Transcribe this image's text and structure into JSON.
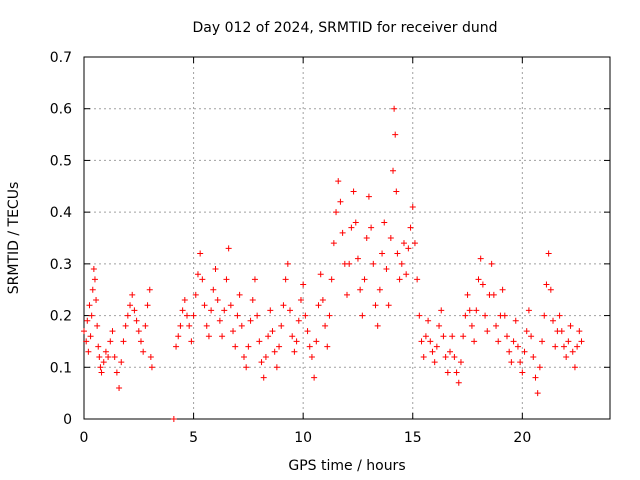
{
  "chart_data": {
    "type": "scatter",
    "title": "Day 012 of 2024, SRMTID for receiver dund",
    "xlabel": "GPS time / hours",
    "ylabel": "SRMTID / TECUs",
    "xlim": [
      0,
      24
    ],
    "ylim": [
      0,
      0.7
    ],
    "xticks": [
      0,
      5,
      10,
      15,
      20
    ],
    "yticks": [
      0,
      0.1,
      0.2,
      0.3,
      0.4,
      0.5,
      0.6,
      0.7
    ],
    "xtick_labels": [
      "0",
      "5",
      "10",
      "15",
      "20"
    ],
    "ytick_labels": [
      "0",
      "0.1",
      "0.2",
      "0.3",
      "0.4",
      "0.5",
      "0.6",
      "0.7"
    ],
    "grid": true,
    "marker": "plus",
    "color": "#ff0000",
    "series": [
      {
        "name": "SRMTID",
        "points": [
          [
            0.0,
            0.17
          ],
          [
            0.1,
            0.15
          ],
          [
            0.15,
            0.19
          ],
          [
            0.2,
            0.13
          ],
          [
            0.25,
            0.22
          ],
          [
            0.3,
            0.16
          ],
          [
            0.35,
            0.2
          ],
          [
            0.4,
            0.25
          ],
          [
            0.45,
            0.29
          ],
          [
            0.5,
            0.27
          ],
          [
            0.55,
            0.23
          ],
          [
            0.6,
            0.18
          ],
          [
            0.65,
            0.14
          ],
          [
            0.7,
            0.12
          ],
          [
            0.75,
            0.1
          ],
          [
            0.8,
            0.09
          ],
          [
            0.9,
            0.11
          ],
          [
            1.0,
            0.13
          ],
          [
            1.1,
            0.12
          ],
          [
            1.2,
            0.15
          ],
          [
            1.3,
            0.17
          ],
          [
            1.4,
            0.12
          ],
          [
            1.5,
            0.09
          ],
          [
            1.6,
            0.06
          ],
          [
            1.7,
            0.11
          ],
          [
            1.8,
            0.15
          ],
          [
            1.9,
            0.18
          ],
          [
            2.0,
            0.2
          ],
          [
            2.1,
            0.22
          ],
          [
            2.2,
            0.24
          ],
          [
            2.3,
            0.21
          ],
          [
            2.4,
            0.19
          ],
          [
            2.5,
            0.17
          ],
          [
            2.6,
            0.15
          ],
          [
            2.7,
            0.13
          ],
          [
            2.8,
            0.18
          ],
          [
            2.9,
            0.22
          ],
          [
            3.0,
            0.25
          ],
          [
            3.05,
            0.12
          ],
          [
            3.1,
            0.1
          ],
          [
            4.1,
            0.0
          ],
          [
            4.2,
            0.14
          ],
          [
            4.3,
            0.16
          ],
          [
            4.4,
            0.18
          ],
          [
            4.5,
            0.21
          ],
          [
            4.6,
            0.23
          ],
          [
            4.7,
            0.2
          ],
          [
            4.8,
            0.18
          ],
          [
            4.9,
            0.15
          ],
          [
            5.0,
            0.2
          ],
          [
            5.1,
            0.24
          ],
          [
            5.2,
            0.28
          ],
          [
            5.3,
            0.32
          ],
          [
            5.4,
            0.27
          ],
          [
            5.5,
            0.22
          ],
          [
            5.6,
            0.18
          ],
          [
            5.7,
            0.16
          ],
          [
            5.8,
            0.21
          ],
          [
            5.9,
            0.25
          ],
          [
            6.0,
            0.29
          ],
          [
            6.1,
            0.23
          ],
          [
            6.2,
            0.19
          ],
          [
            6.3,
            0.16
          ],
          [
            6.4,
            0.21
          ],
          [
            6.5,
            0.27
          ],
          [
            6.6,
            0.33
          ],
          [
            6.7,
            0.22
          ],
          [
            6.8,
            0.17
          ],
          [
            6.9,
            0.14
          ],
          [
            7.0,
            0.2
          ],
          [
            7.1,
            0.24
          ],
          [
            7.2,
            0.18
          ],
          [
            7.3,
            0.12
          ],
          [
            7.4,
            0.1
          ],
          [
            7.5,
            0.14
          ],
          [
            7.6,
            0.19
          ],
          [
            7.7,
            0.23
          ],
          [
            7.8,
            0.27
          ],
          [
            7.9,
            0.2
          ],
          [
            8.0,
            0.15
          ],
          [
            8.1,
            0.11
          ],
          [
            8.2,
            0.08
          ],
          [
            8.3,
            0.12
          ],
          [
            8.4,
            0.16
          ],
          [
            8.5,
            0.21
          ],
          [
            8.6,
            0.17
          ],
          [
            8.7,
            0.13
          ],
          [
            8.8,
            0.1
          ],
          [
            8.9,
            0.14
          ],
          [
            9.0,
            0.18
          ],
          [
            9.1,
            0.22
          ],
          [
            9.2,
            0.27
          ],
          [
            9.3,
            0.3
          ],
          [
            9.4,
            0.21
          ],
          [
            9.5,
            0.16
          ],
          [
            9.6,
            0.13
          ],
          [
            9.7,
            0.15
          ],
          [
            9.8,
            0.19
          ],
          [
            9.9,
            0.23
          ],
          [
            10.0,
            0.26
          ],
          [
            10.1,
            0.2
          ],
          [
            10.2,
            0.17
          ],
          [
            10.3,
            0.14
          ],
          [
            10.4,
            0.12
          ],
          [
            10.5,
            0.08
          ],
          [
            10.6,
            0.15
          ],
          [
            10.7,
            0.22
          ],
          [
            10.8,
            0.28
          ],
          [
            10.9,
            0.23
          ],
          [
            11.0,
            0.18
          ],
          [
            11.1,
            0.14
          ],
          [
            11.2,
            0.2
          ],
          [
            11.3,
            0.27
          ],
          [
            11.4,
            0.34
          ],
          [
            11.5,
            0.4
          ],
          [
            11.6,
            0.46
          ],
          [
            11.7,
            0.42
          ],
          [
            11.8,
            0.36
          ],
          [
            11.9,
            0.3
          ],
          [
            12.0,
            0.24
          ],
          [
            12.1,
            0.3
          ],
          [
            12.2,
            0.37
          ],
          [
            12.3,
            0.44
          ],
          [
            12.4,
            0.38
          ],
          [
            12.5,
            0.31
          ],
          [
            12.6,
            0.25
          ],
          [
            12.7,
            0.2
          ],
          [
            12.8,
            0.27
          ],
          [
            12.9,
            0.35
          ],
          [
            13.0,
            0.43
          ],
          [
            13.1,
            0.37
          ],
          [
            13.2,
            0.3
          ],
          [
            13.3,
            0.22
          ],
          [
            13.4,
            0.18
          ],
          [
            13.5,
            0.25
          ],
          [
            13.6,
            0.32
          ],
          [
            13.7,
            0.38
          ],
          [
            13.8,
            0.29
          ],
          [
            13.9,
            0.22
          ],
          [
            14.0,
            0.35
          ],
          [
            14.1,
            0.48
          ],
          [
            14.15,
            0.6
          ],
          [
            14.2,
            0.55
          ],
          [
            14.25,
            0.44
          ],
          [
            14.3,
            0.32
          ],
          [
            14.4,
            0.27
          ],
          [
            14.5,
            0.3
          ],
          [
            14.6,
            0.34
          ],
          [
            14.7,
            0.28
          ],
          [
            14.8,
            0.33
          ],
          [
            14.9,
            0.37
          ],
          [
            15.0,
            0.41
          ],
          [
            15.1,
            0.34
          ],
          [
            15.2,
            0.27
          ],
          [
            15.3,
            0.2
          ],
          [
            15.4,
            0.15
          ],
          [
            15.5,
            0.12
          ],
          [
            15.6,
            0.16
          ],
          [
            15.7,
            0.19
          ],
          [
            15.8,
            0.15
          ],
          [
            15.9,
            0.13
          ],
          [
            16.0,
            0.11
          ],
          [
            16.1,
            0.14
          ],
          [
            16.2,
            0.18
          ],
          [
            16.3,
            0.21
          ],
          [
            16.4,
            0.16
          ],
          [
            16.5,
            0.12
          ],
          [
            16.6,
            0.09
          ],
          [
            16.7,
            0.13
          ],
          [
            16.8,
            0.16
          ],
          [
            16.9,
            0.12
          ],
          [
            17.0,
            0.09
          ],
          [
            17.1,
            0.07
          ],
          [
            17.2,
            0.11
          ],
          [
            17.3,
            0.16
          ],
          [
            17.4,
            0.2
          ],
          [
            17.5,
            0.24
          ],
          [
            17.6,
            0.21
          ],
          [
            17.7,
            0.18
          ],
          [
            17.8,
            0.15
          ],
          [
            17.9,
            0.21
          ],
          [
            18.0,
            0.27
          ],
          [
            18.1,
            0.31
          ],
          [
            18.2,
            0.26
          ],
          [
            18.3,
            0.2
          ],
          [
            18.4,
            0.17
          ],
          [
            18.5,
            0.24
          ],
          [
            18.6,
            0.3
          ],
          [
            18.7,
            0.24
          ],
          [
            18.8,
            0.18
          ],
          [
            18.9,
            0.15
          ],
          [
            19.0,
            0.2
          ],
          [
            19.1,
            0.25
          ],
          [
            19.2,
            0.2
          ],
          [
            19.3,
            0.16
          ],
          [
            19.4,
            0.13
          ],
          [
            19.5,
            0.11
          ],
          [
            19.6,
            0.15
          ],
          [
            19.7,
            0.19
          ],
          [
            19.8,
            0.14
          ],
          [
            19.9,
            0.11
          ],
          [
            20.0,
            0.09
          ],
          [
            20.1,
            0.13
          ],
          [
            20.2,
            0.17
          ],
          [
            20.3,
            0.21
          ],
          [
            20.4,
            0.16
          ],
          [
            20.5,
            0.12
          ],
          [
            20.6,
            0.08
          ],
          [
            20.7,
            0.05
          ],
          [
            20.8,
            0.1
          ],
          [
            20.9,
            0.15
          ],
          [
            21.0,
            0.2
          ],
          [
            21.1,
            0.26
          ],
          [
            21.2,
            0.32
          ],
          [
            21.3,
            0.25
          ],
          [
            21.4,
            0.19
          ],
          [
            21.5,
            0.14
          ],
          [
            21.6,
            0.17
          ],
          [
            21.7,
            0.2
          ],
          [
            21.8,
            0.17
          ],
          [
            21.9,
            0.14
          ],
          [
            22.0,
            0.12
          ],
          [
            22.1,
            0.15
          ],
          [
            22.2,
            0.18
          ],
          [
            22.3,
            0.13
          ],
          [
            22.4,
            0.1
          ],
          [
            22.5,
            0.14
          ],
          [
            22.6,
            0.17
          ],
          [
            22.7,
            0.15
          ]
        ]
      }
    ]
  }
}
